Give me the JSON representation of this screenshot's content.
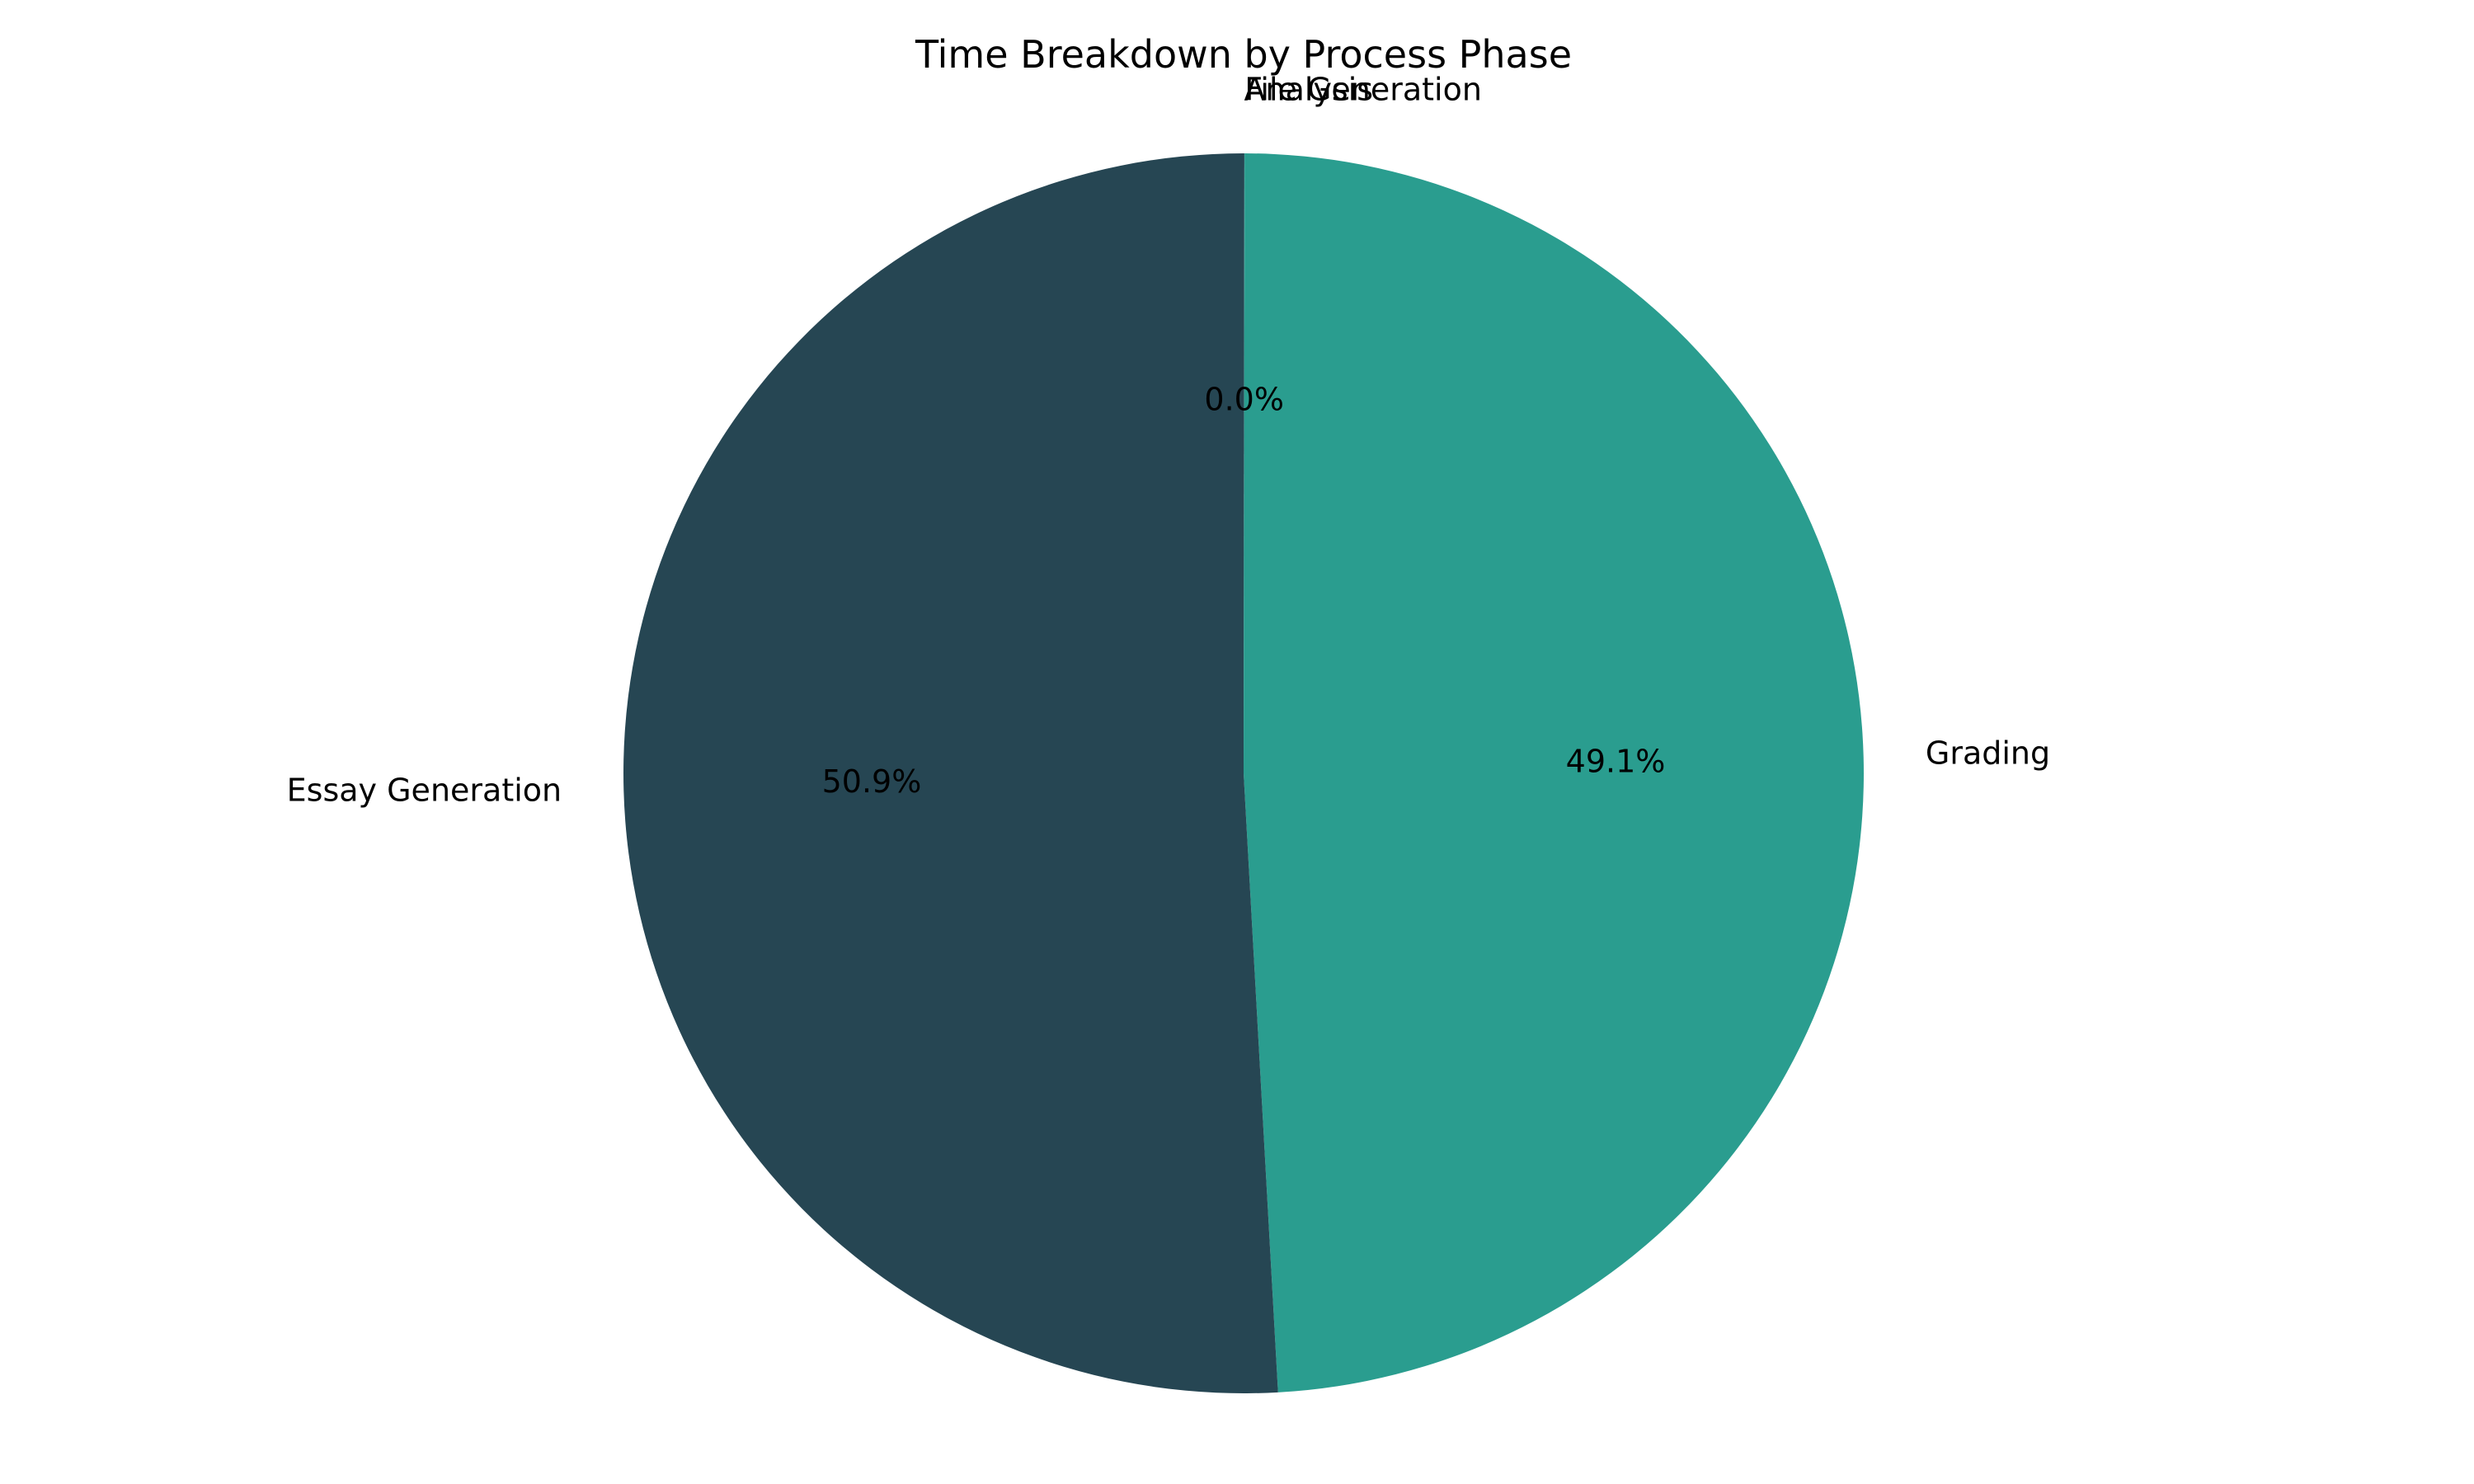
{
  "chart_data": {
    "type": "pie",
    "title": "Time Breakdown by Process Phase",
    "slices": [
      {
        "label": "Analysis",
        "value": 0.02,
        "pct_label": "",
        "color": "#264653"
      },
      {
        "label": "File Generation",
        "value": 0.01,
        "pct_label": "0.0%",
        "color": "#2a9d8f"
      },
      {
        "label": "Grading",
        "value": 49.1,
        "pct_label": "49.1%",
        "color": "#2a9d8f"
      },
      {
        "label": "Essay Generation",
        "value": 50.9,
        "pct_label": "50.9%",
        "color": "#264653"
      }
    ],
    "start_angle_deg": 90,
    "direction": "clockwise",
    "legend": "none"
  }
}
